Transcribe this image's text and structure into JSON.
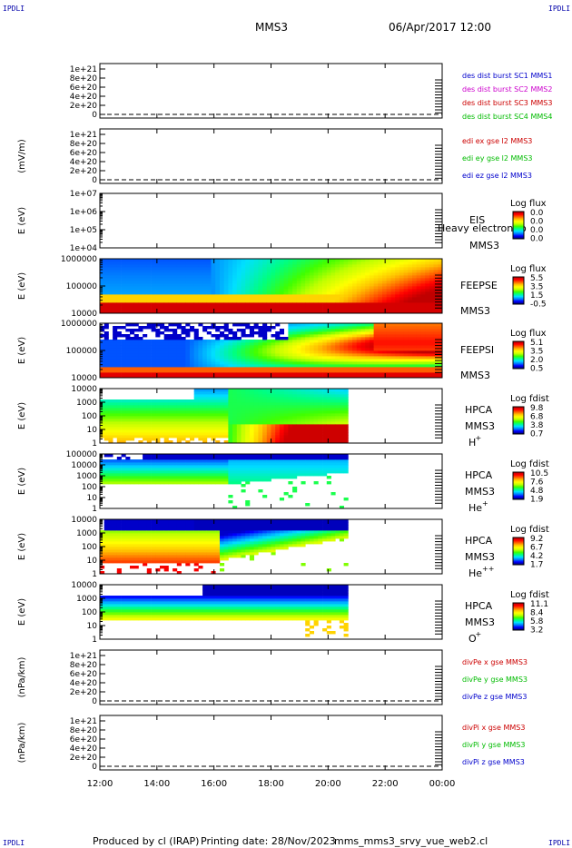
{
  "header": {
    "corner_left_top": "IPDLI",
    "corner_right_top": "IPDLI",
    "corner_left_bottom": "IPDLI",
    "corner_right_bottom": "IPDLI",
    "spacecraft": "MMS3",
    "datetime": "06/Apr/2017 12:00"
  },
  "footer": {
    "produced_by": "Produced by cl (IRAP)",
    "printing_date": "Printing date: 28/Nov/2023",
    "script_name": "mms_mms3_srvy_vue_web2.cl"
  },
  "colors": {
    "blue": "#0000cc",
    "magenta": "#cc00cc",
    "red": "#cc0000",
    "green": "#00bb00",
    "dashed": "#000000"
  },
  "chart_data": [
    {
      "type": "line",
      "id": "des-dist",
      "ylabel": "",
      "yticks": [
        "0",
        "2e+20",
        "4e+20",
        "6e+20",
        "8e+20",
        "1e+21"
      ],
      "legend": [
        {
          "text": "des dist burst SC1 MMS1",
          "color": "#0000cc"
        },
        {
          "text": "des dist burst SC2 MMS2",
          "color": "#cc00cc"
        },
        {
          "text": "des dist burst SC3 MMS3",
          "color": "#cc0000"
        },
        {
          "text": "des dist burst SC4 MMS4",
          "color": "#00bb00"
        }
      ]
    },
    {
      "type": "line",
      "id": "edi-e",
      "ylabel": "(mV/m)",
      "yticks": [
        "0",
        "2e+20",
        "4e+20",
        "6e+20",
        "8e+20",
        "1e+21"
      ],
      "legend": [
        {
          "text": "edi ex gse l2 MMS3",
          "color": "#cc0000"
        },
        {
          "text": "edi ey gse l2 MMS3",
          "color": "#00bb00"
        },
        {
          "text": "edi ez gse l2 MMS3",
          "color": "#0000cc"
        }
      ]
    },
    {
      "type": "heatmap",
      "id": "eis",
      "ylabel": "E (eV)",
      "yticks": [
        "1e+04",
        "1e+05",
        "1e+06",
        "1e+07"
      ],
      "instrument": "EIS",
      "overlap_text": "Heavy electron to",
      "sc": "MMS3",
      "colorbar_title": "Log flux",
      "colorbar_values": [
        "0.0",
        "0.0",
        "0.0",
        "0.0"
      ]
    },
    {
      "type": "heatmap",
      "id": "feepse",
      "ylabel": "E (eV)",
      "yticks": [
        "10000",
        "100000",
        "1000000"
      ],
      "instrument": "FEEPSE",
      "sc": "MMS3",
      "colorbar_title": "Log flux",
      "colorbar_values": [
        "5.5",
        "3.5",
        "1.5",
        "-0.5"
      ]
    },
    {
      "type": "heatmap",
      "id": "feepsi",
      "ylabel": "E (eV)",
      "yticks": [
        "10000",
        "100000",
        "1000000"
      ],
      "instrument": "FEEPSI",
      "sc": "MMS3",
      "colorbar_title": "Log flux",
      "colorbar_values": [
        "5.1",
        "3.5",
        "2.0",
        "0.5"
      ]
    },
    {
      "type": "heatmap",
      "id": "hpca-h",
      "ylabel": "E (eV)",
      "yticks": [
        "1",
        "10",
        "100",
        "1000",
        "10000"
      ],
      "instrument": "HPCA",
      "sc": "MMS3",
      "species": "H",
      "species_sup": "+",
      "colorbar_title": "Log fdist",
      "colorbar_values": [
        "9.8",
        "6.8",
        "3.8",
        "0.7"
      ]
    },
    {
      "type": "heatmap",
      "id": "hpca-he",
      "ylabel": "E (eV)",
      "yticks": [
        "1",
        "10",
        "100",
        "1000",
        "10000",
        "100000"
      ],
      "instrument": "HPCA",
      "sc": "MMS3",
      "species": "He",
      "species_sup": "+",
      "colorbar_title": "Log fdist",
      "colorbar_values": [
        "10.5",
        "7.6",
        "4.8",
        "1.9"
      ]
    },
    {
      "type": "heatmap",
      "id": "hpca-hepp",
      "ylabel": "E (eV)",
      "yticks": [
        "1",
        "10",
        "100",
        "1000",
        "10000"
      ],
      "instrument": "HPCA",
      "sc": "MMS3",
      "species": "He",
      "species_sup": "++",
      "colorbar_title": "Log fdist",
      "colorbar_values": [
        "9.2",
        "6.7",
        "4.2",
        "1.7"
      ]
    },
    {
      "type": "heatmap",
      "id": "hpca-o",
      "ylabel": "E (eV)",
      "yticks": [
        "1",
        "10",
        "100",
        "1000",
        "10000"
      ],
      "instrument": "HPCA",
      "sc": "MMS3",
      "species": "O",
      "species_sup": "+",
      "colorbar_title": "Log fdist",
      "colorbar_values": [
        "11.1",
        "8.4",
        "5.8",
        "3.2"
      ]
    },
    {
      "type": "line",
      "id": "divpe",
      "ylabel": "(nPa/km)",
      "yticks": [
        "0",
        "2e+20",
        "4e+20",
        "6e+20",
        "8e+20",
        "1e+21"
      ],
      "legend": [
        {
          "text": "divPe x gse MMS3",
          "color": "#cc0000"
        },
        {
          "text": "divPe y gse MMS3",
          "color": "#00bb00"
        },
        {
          "text": "divPe z gse MMS3",
          "color": "#0000cc"
        }
      ]
    },
    {
      "type": "line",
      "id": "divpi",
      "ylabel": "(nPa/km)",
      "yticks": [
        "0",
        "2e+20",
        "4e+20",
        "6e+20",
        "8e+20",
        "1e+21"
      ],
      "legend": [
        {
          "text": "divPi x gse MMS3",
          "color": "#cc0000"
        },
        {
          "text": "divPi y gse MMS3",
          "color": "#00bb00"
        },
        {
          "text": "divPi z gse MMS3",
          "color": "#0000cc"
        }
      ]
    }
  ],
  "xaxis": {
    "ticks": [
      "12:00",
      "14:00",
      "16:00",
      "18:00",
      "20:00",
      "22:00",
      "00:00"
    ]
  }
}
